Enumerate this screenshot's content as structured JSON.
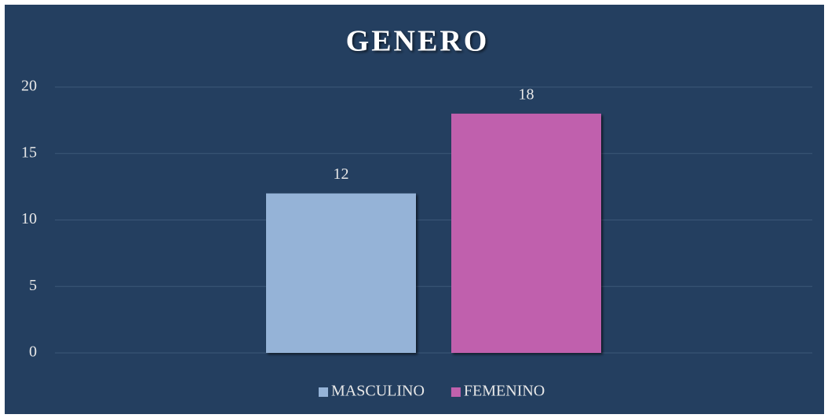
{
  "chart_data": {
    "type": "bar",
    "title": "GENERO",
    "categories": [
      null
    ],
    "series": [
      {
        "name": "MASCULINO",
        "color": "#95b3d7",
        "values": [
          12
        ]
      },
      {
        "name": "FEMENINO",
        "color": "#c061ad",
        "values": [
          18
        ]
      }
    ],
    "ylim": [
      0,
      20
    ],
    "yticks": [
      0,
      5,
      10,
      15,
      20
    ],
    "grid": true,
    "legend": "bottom"
  }
}
